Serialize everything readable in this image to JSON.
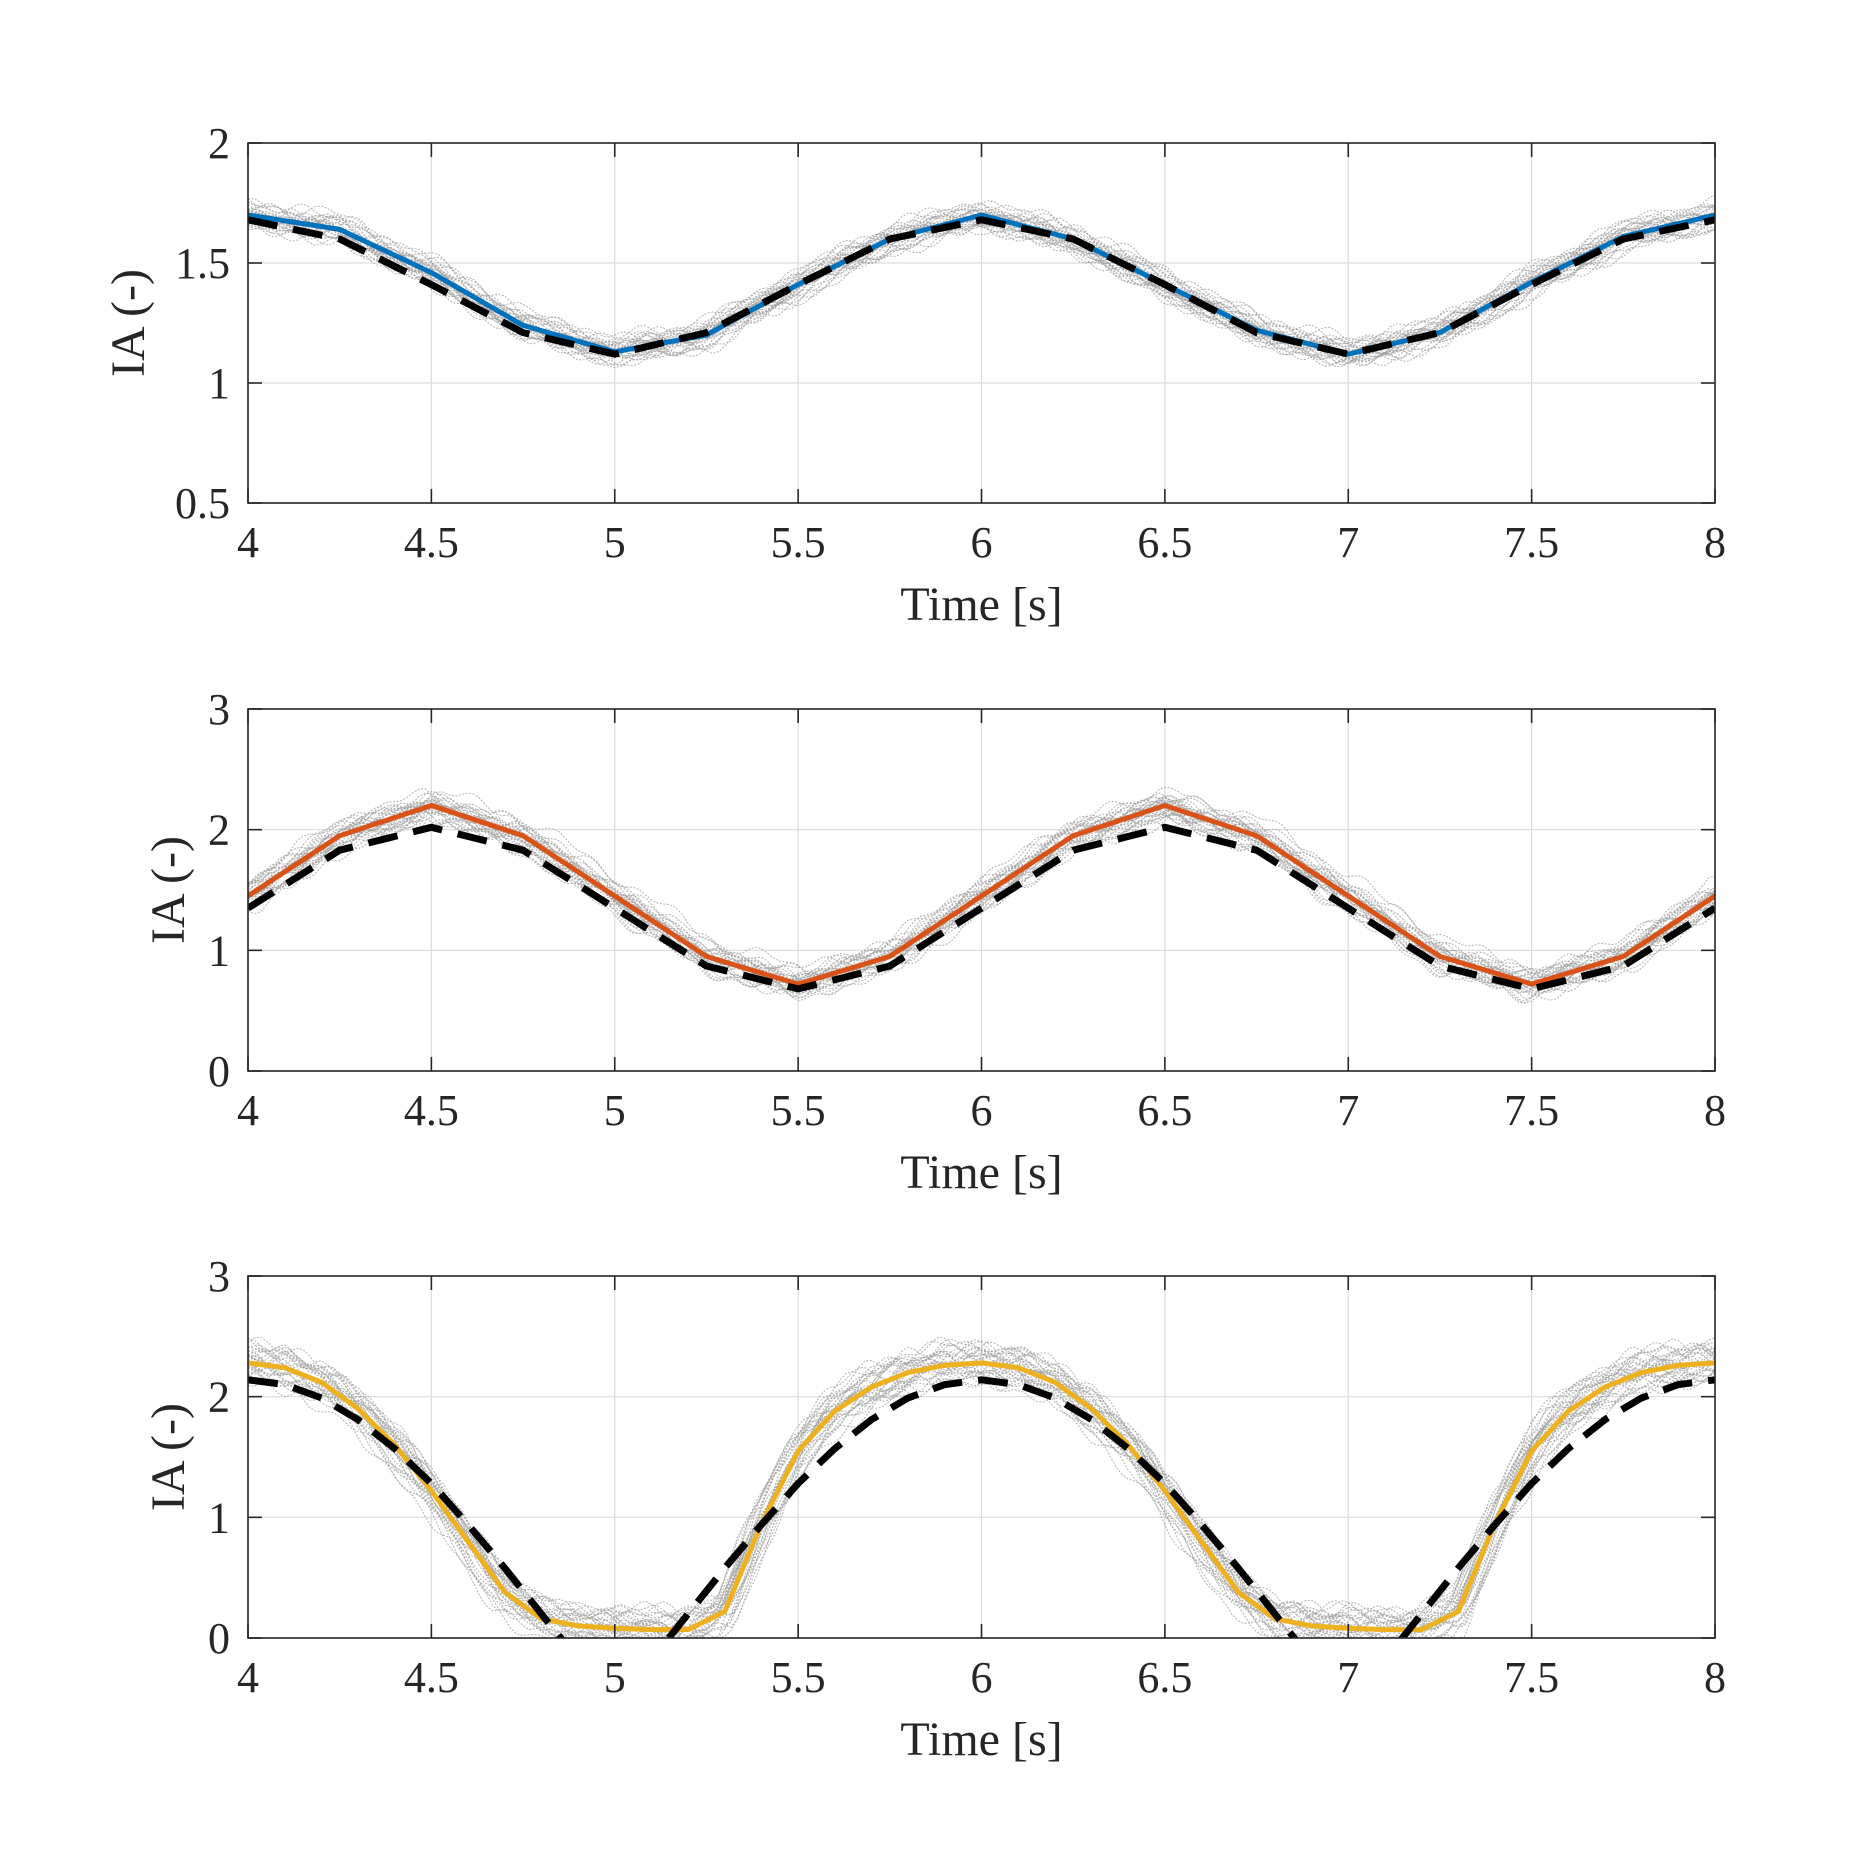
{
  "chart_data": [
    {
      "type": "line",
      "title": "",
      "xlabel": "Time [s]",
      "ylabel": "IA (-)",
      "xlim": [
        4,
        8
      ],
      "ylim": [
        0.5,
        2
      ],
      "xticks": [
        "4",
        "4.5",
        "5",
        "5.5",
        "6",
        "6.5",
        "7",
        "7.5",
        "8"
      ],
      "yticks": [
        "0.5",
        "1",
        "1.5",
        "2"
      ],
      "grid": true,
      "x": [
        4.0,
        4.25,
        4.5,
        4.75,
        5.0,
        5.25,
        5.5,
        5.75,
        6.0,
        6.25,
        6.5,
        6.75,
        7.0,
        7.25,
        7.5,
        7.75,
        8.0
      ],
      "series": [
        {
          "name": "",
          "role": "mean",
          "color": "#0072BD",
          "values": [
            1.7,
            1.64,
            1.46,
            1.24,
            1.13,
            1.2,
            1.41,
            1.6,
            1.7,
            1.6,
            1.41,
            1.22,
            1.12,
            1.21,
            1.42,
            1.61,
            1.7
          ]
        },
        {
          "name": "",
          "role": "reference",
          "color": "#000000",
          "values": [
            1.68,
            1.6,
            1.41,
            1.21,
            1.12,
            1.21,
            1.41,
            1.6,
            1.68,
            1.6,
            1.41,
            1.21,
            1.12,
            1.21,
            1.41,
            1.6,
            1.68
          ]
        }
      ],
      "band": {
        "color": "#a0a0a0",
        "amplitude": 0.06
      }
    },
    {
      "type": "line",
      "title": "",
      "xlabel": "Time [s]",
      "ylabel": "IA (-)",
      "xlim": [
        4,
        8
      ],
      "ylim": [
        0,
        3
      ],
      "xticks": [
        "4",
        "4.5",
        "5",
        "5.5",
        "6",
        "6.5",
        "7",
        "7.5",
        "8"
      ],
      "yticks": [
        "0",
        "1",
        "2",
        "3"
      ],
      "grid": true,
      "x": [
        4.0,
        4.25,
        4.5,
        4.75,
        5.0,
        5.25,
        5.5,
        5.75,
        6.0,
        6.25,
        6.5,
        6.75,
        7.0,
        7.25,
        7.5,
        7.75,
        8.0
      ],
      "series": [
        {
          "name": "",
          "role": "mean",
          "color": "#D95319",
          "values": [
            1.45,
            1.95,
            2.2,
            1.95,
            1.45,
            0.95,
            0.72,
            0.95,
            1.45,
            1.95,
            2.2,
            1.95,
            1.45,
            0.95,
            0.72,
            0.95,
            1.45
          ]
        },
        {
          "name": "",
          "role": "reference",
          "color": "#000000",
          "values": [
            1.35,
            1.83,
            2.02,
            1.83,
            1.35,
            0.87,
            0.68,
            0.87,
            1.35,
            1.83,
            2.02,
            1.83,
            1.35,
            0.87,
            0.68,
            0.87,
            1.35
          ]
        }
      ],
      "band": {
        "color": "#a0a0a0",
        "amplitude": 0.12
      }
    },
    {
      "type": "line",
      "title": "",
      "xlabel": "Time [s]",
      "ylabel": "IA (-)",
      "xlim": [
        4,
        8
      ],
      "ylim": [
        0,
        3
      ],
      "xticks": [
        "4",
        "4.5",
        "5",
        "5.5",
        "6",
        "6.5",
        "7",
        "7.5",
        "8"
      ],
      "yticks": [
        "0",
        "1",
        "2",
        "3"
      ],
      "grid": true,
      "x": [
        4.0,
        4.1,
        4.2,
        4.3,
        4.4,
        4.5,
        4.6,
        4.7,
        4.8,
        4.9,
        5.0,
        5.1,
        5.2,
        5.3,
        5.4,
        5.5,
        5.6,
        5.7,
        5.8,
        5.9,
        6.0,
        6.1,
        6.2,
        6.3,
        6.4,
        6.5,
        6.6,
        6.7,
        6.8,
        6.9,
        7.0,
        7.1,
        7.2,
        7.3,
        7.4,
        7.5,
        7.6,
        7.7,
        7.8,
        7.9,
        8.0
      ],
      "series": [
        {
          "name": "",
          "role": "mean",
          "color": "#EDB120",
          "values": [
            2.28,
            2.24,
            2.12,
            1.9,
            1.6,
            1.22,
            0.8,
            0.38,
            0.16,
            0.1,
            0.08,
            0.07,
            0.07,
            0.22,
            0.95,
            1.55,
            1.88,
            2.08,
            2.2,
            2.26,
            2.28,
            2.24,
            2.12,
            1.9,
            1.6,
            1.22,
            0.8,
            0.38,
            0.16,
            0.1,
            0.08,
            0.07,
            0.07,
            0.22,
            0.95,
            1.55,
            1.88,
            2.08,
            2.2,
            2.26,
            2.28
          ]
        },
        {
          "name": "",
          "role": "reference",
          "color": "#000000",
          "values": [
            2.14,
            2.1,
            1.99,
            1.81,
            1.57,
            1.28,
            0.94,
            0.58,
            0.2,
            -0.18,
            -0.3,
            -0.18,
            0.2,
            0.58,
            0.94,
            1.28,
            1.57,
            1.81,
            1.99,
            2.1,
            2.14,
            2.1,
            1.99,
            1.81,
            1.57,
            1.28,
            0.94,
            0.58,
            0.2,
            -0.18,
            -0.3,
            -0.18,
            0.2,
            0.58,
            0.94,
            1.28,
            1.57,
            1.81,
            1.99,
            2.1,
            2.14
          ]
        }
      ],
      "band": {
        "color": "#a0a0a0",
        "amplitude": 0.15
      }
    }
  ]
}
